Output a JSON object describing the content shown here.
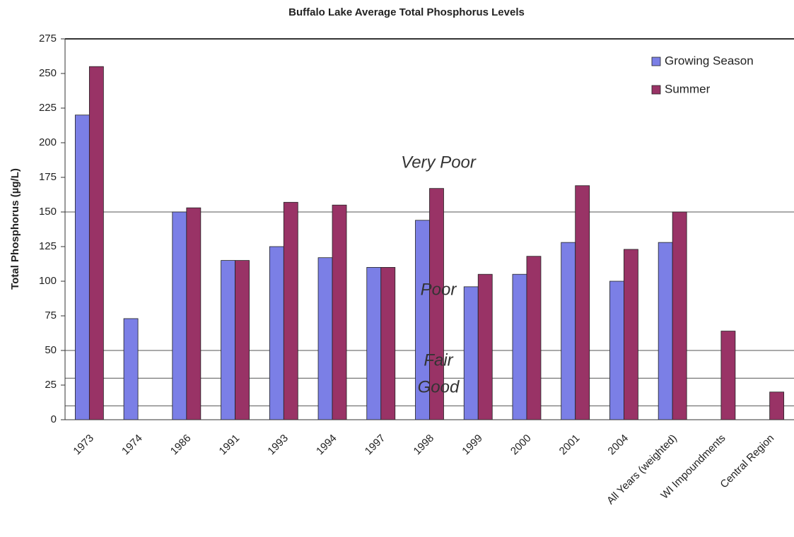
{
  "chart_data": {
    "type": "bar",
    "title": "Buffalo Lake Average Total Phosphorus Levels",
    "y_label": "Total Phosphorus (µg/L)",
    "categories": [
      "1973",
      "1974",
      "1986",
      "1991",
      "1993",
      "1994",
      "1997",
      "1998",
      "1999",
      "2000",
      "2001",
      "2004",
      "All Years (weighted)",
      "WI Impoundments",
      "Central Region"
    ],
    "series": [
      {
        "name": "Growing Season",
        "color": "#7b7fe6",
        "values": [
          220,
          73,
          150,
          115,
          125,
          117,
          110,
          144,
          96,
          105,
          128,
          100,
          128,
          null,
          null
        ]
      },
      {
        "name": "Summer",
        "color": "#993366",
        "values": [
          255,
          null,
          153,
          115,
          157,
          155,
          110,
          167,
          105,
          118,
          169,
          123,
          150,
          64,
          20
        ]
      }
    ],
    "ylim": [
      0,
      275
    ],
    "yticks": [
      0,
      25,
      50,
      75,
      100,
      125,
      150,
      175,
      200,
      225,
      250,
      275
    ],
    "reference_lines": [
      10,
      30,
      50,
      150
    ],
    "annotations": [
      "Very Poor",
      "Poor",
      "Fair",
      "Good"
    ],
    "legend": "top-right"
  }
}
